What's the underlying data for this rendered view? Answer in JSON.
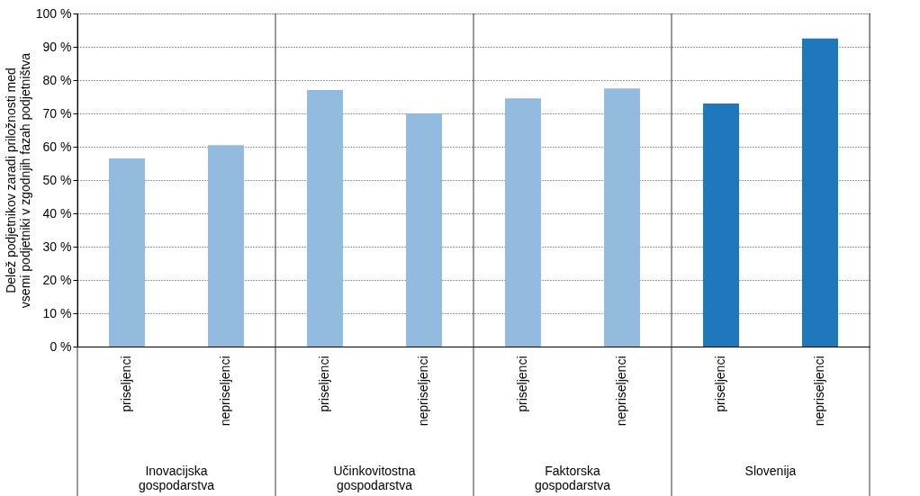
{
  "chart_data": {
    "type": "bar",
    "ylabel": "Delež podjetnikov zaradi priložnosti med vsemi podjetniki v zgodnjih fazah podjetništva",
    "categories": [
      "priseljenci",
      "nepriseljenci",
      "priseljenci",
      "nepriseljenci",
      "priseljenci",
      "nepriseljenci",
      "priseljenci",
      "nepriseljenci"
    ],
    "values": [
      56.5,
      60.5,
      77,
      70,
      74.5,
      77.5,
      73,
      92.5
    ],
    "colors": [
      "#92bbdf",
      "#92bbdf",
      "#92bbdf",
      "#92bbdf",
      "#92bbdf",
      "#92bbdf",
      "#1f77bc",
      "#1f77bc"
    ],
    "annotations": [
      "Inovacijska gospodarstva",
      "Učinkovitostna gospodarstva",
      "Faktorska gospodarstva",
      "Slovenija"
    ],
    "ylim": [
      0,
      100
    ],
    "yticks": [
      {
        "value": 0,
        "label": "0 %"
      },
      {
        "value": 10,
        "label": "10 %"
      },
      {
        "value": 20,
        "label": "20 %"
      },
      {
        "value": 30,
        "label": "30 %"
      },
      {
        "value": 40,
        "label": "40 %"
      },
      {
        "value": 50,
        "label": "50 %"
      },
      {
        "value": 60,
        "label": "60 %"
      },
      {
        "value": 70,
        "label": "70 %"
      },
      {
        "value": 80,
        "label": "80 %"
      },
      {
        "value": 90,
        "label": "90 %"
      },
      {
        "value": 100,
        "label": "100 %"
      }
    ],
    "grid": "y"
  }
}
